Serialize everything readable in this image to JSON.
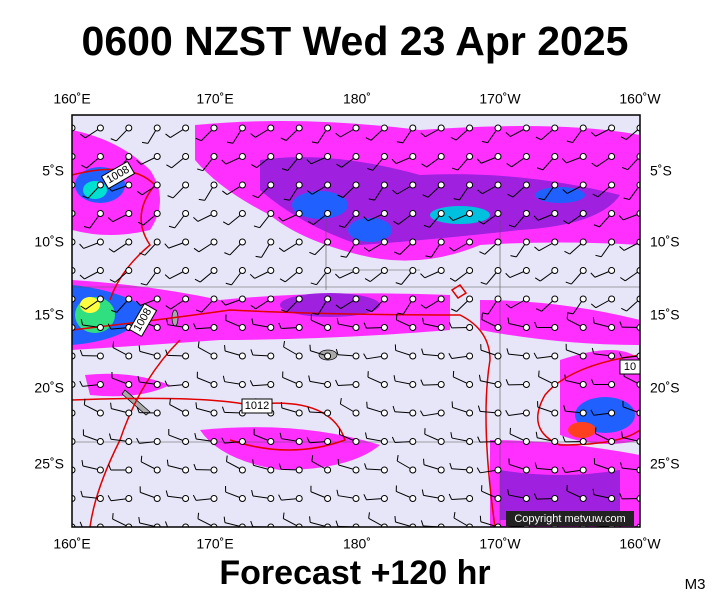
{
  "title": "0600 NZST Wed 23 Apr 2025",
  "longitude_labels_top": [
    "160˚E",
    "170˚E",
    "180˚",
    "170˚W",
    "160˚W"
  ],
  "longitude_labels_bottom": [
    "160˚E",
    "170˚E",
    "180˚",
    "170˚W",
    "160˚W"
  ],
  "latitude_labels_left": [
    "5˚S",
    "10˚S",
    "15˚S",
    "20˚S",
    "25˚S"
  ],
  "latitude_labels_right": [
    "5˚S",
    "10˚S",
    "15˚S",
    "20˚S",
    "25˚S"
  ],
  "isobar_labels": [
    "1008",
    "1008",
    "1012",
    "10"
  ],
  "copyright": "Copyright metvuw.com",
  "footer": "Forecast +120 hr",
  "model_code": "M3"
}
